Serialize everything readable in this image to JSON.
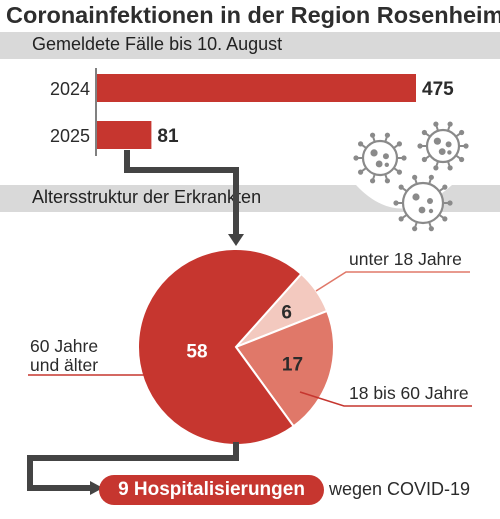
{
  "title": "Coronainfektionen in der Region Rosenheim",
  "colors": {
    "accent": "#c6362f",
    "pie_mid": "#e07869",
    "pie_light": "#f3c9bf",
    "band": "#d9d9d9",
    "connector": "#444444"
  },
  "chart_data": [
    {
      "type": "bar",
      "orientation": "horizontal",
      "title": "Gemeldete Fälle bis 10. August",
      "categories": [
        "2024",
        "2025"
      ],
      "values": [
        475,
        81
      ],
      "value_labels": [
        "475",
        "81"
      ]
    },
    {
      "type": "pie",
      "title": "Altersstruktur der Erkrankten",
      "slices": [
        {
          "label": "60 Jahre und älter",
          "value": 58,
          "value_label": "58",
          "color": "#c6362f"
        },
        {
          "label": "unter 18 Jahre",
          "value": 6,
          "value_label": "6",
          "color": "#f3c9bf"
        },
        {
          "label": "18 bis 60 Jahre",
          "value": 17,
          "value_label": "17",
          "color": "#e07869"
        }
      ]
    }
  ],
  "pie_labels": {
    "old_line1": "60 Jahre",
    "old_line2": "und älter",
    "young": "unter 18 Jahre",
    "mid": "18 bis 60 Jahre"
  },
  "footer": {
    "hospital_label": "9 Hospitalisierungen",
    "suffix": "wegen COVID-19"
  },
  "icons": [
    "virus-icon",
    "virus-icon",
    "virus-icon"
  ]
}
